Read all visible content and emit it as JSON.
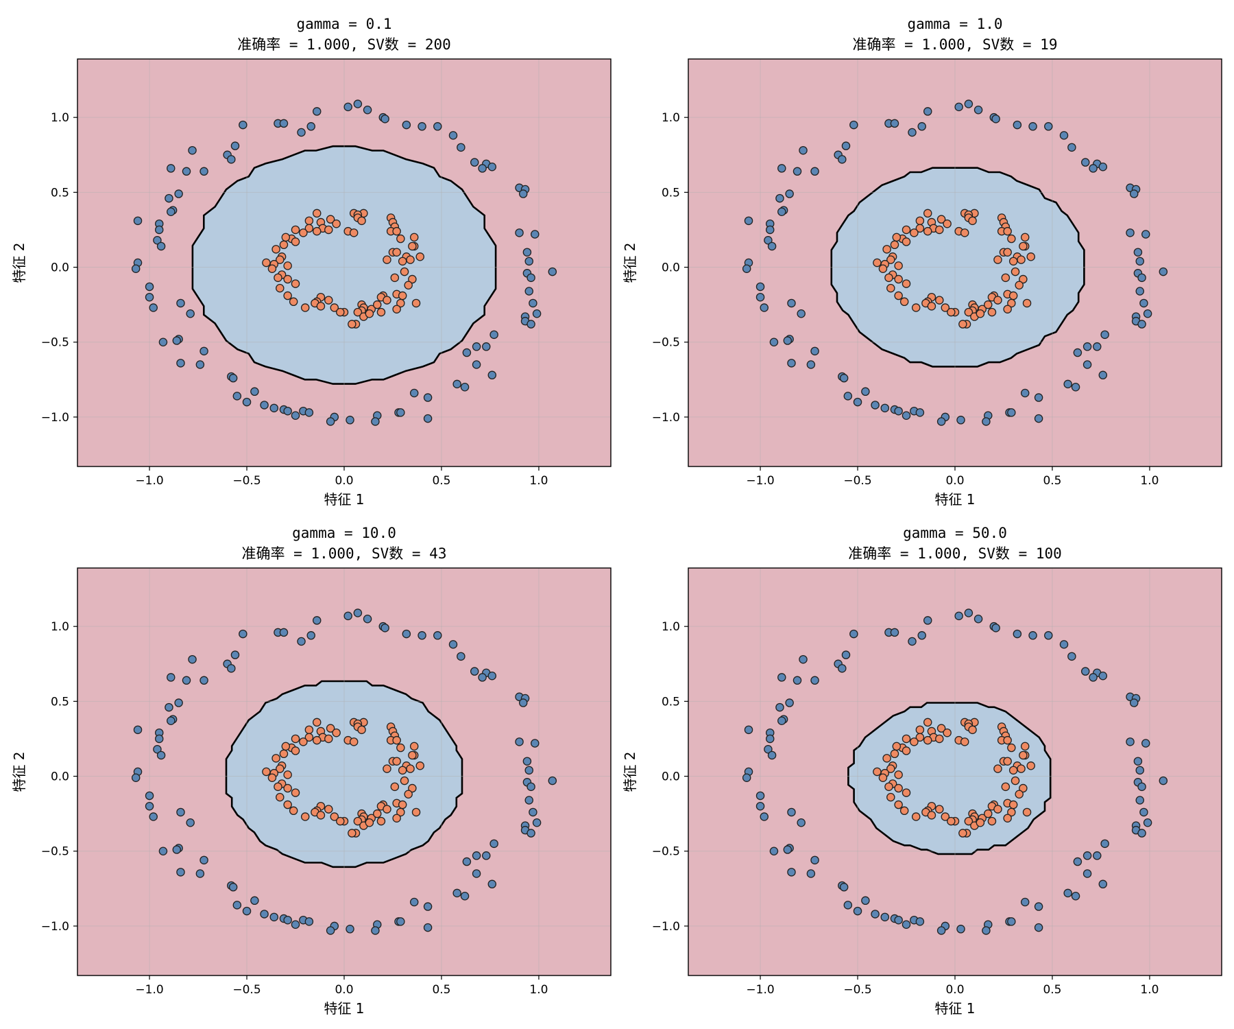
{
  "chart_data": [
    {
      "type": "scatter",
      "title": "gamma = 0.1",
      "subtitle": "准确率 = 1.000, SV数 = 200",
      "xlabel": "特征 1",
      "ylabel": "特征 2",
      "xlim": [
        -1.37,
        1.37
      ],
      "ylim": [
        -1.33,
        1.39
      ],
      "xticks": [
        -1.0,
        -0.5,
        0.0,
        0.5,
        1.0
      ],
      "yticks": [
        -1.0,
        -0.5,
        0.0,
        0.5,
        1.0
      ],
      "xtick_labels": [
        "−1.0",
        "−0.5",
        "0.0",
        "0.5",
        "1.0"
      ],
      "ytick_labels": [
        "−1.0",
        "−0.5",
        "0.0",
        "0.5",
        "1.0"
      ],
      "grid": true,
      "boundary": {
        "rx_pos": 0.78,
        "rx_neg": 0.78,
        "ry_pos": 0.8,
        "ry_neg": 0.77,
        "cx": 0.0,
        "cy": 0.0
      },
      "colors": {
        "outer_class": "#5b86b4",
        "inner_class": "#ef8a62",
        "region_outer": "#e2b6be",
        "region_inner": "#b6cbdf"
      }
    },
    {
      "type": "scatter",
      "title": "gamma = 1.0",
      "subtitle": "准确率 = 1.000, SV数 = 19",
      "xlabel": "特征 1",
      "ylabel": "特征 2",
      "xlim": [
        -1.37,
        1.37
      ],
      "ylim": [
        -1.33,
        1.39
      ],
      "xticks": [
        -1.0,
        -0.5,
        0.0,
        0.5,
        1.0
      ],
      "yticks": [
        -1.0,
        -0.5,
        0.0,
        0.5,
        1.0
      ],
      "xtick_labels": [
        "−1.0",
        "−0.5",
        "0.0",
        "0.5",
        "1.0"
      ],
      "ytick_labels": [
        "−1.0",
        "−0.5",
        "0.0",
        "0.5",
        "1.0"
      ],
      "grid": true,
      "boundary": {
        "rx_pos": 0.66,
        "rx_neg": 0.64,
        "ry_pos": 0.67,
        "ry_neg": 0.66,
        "cx": 0.0,
        "cy": 0.0
      },
      "colors": {
        "outer_class": "#5b86b4",
        "inner_class": "#ef8a62",
        "region_outer": "#e2b6be",
        "region_inner": "#b6cbdf"
      }
    },
    {
      "type": "scatter",
      "title": "gamma = 10.0",
      "subtitle": "准确率 = 1.000, SV数 = 43",
      "xlabel": "特征 1",
      "ylabel": "特征 2",
      "xlim": [
        -1.37,
        1.37
      ],
      "ylim": [
        -1.33,
        1.39
      ],
      "xticks": [
        -1.0,
        -0.5,
        0.0,
        0.5,
        1.0
      ],
      "yticks": [
        -1.0,
        -0.5,
        0.0,
        0.5,
        1.0
      ],
      "xtick_labels": [
        "−1.0",
        "−0.5",
        "0.0",
        "0.5",
        "1.0"
      ],
      "ytick_labels": [
        "−1.0",
        "−0.5",
        "0.0",
        "0.5",
        "1.0"
      ],
      "grid": true,
      "boundary": {
        "rx_pos": 0.61,
        "rx_neg": 0.61,
        "ry_pos": 0.63,
        "ry_neg": 0.6,
        "cx": 0.0,
        "cy": 0.0
      },
      "colors": {
        "outer_class": "#5b86b4",
        "inner_class": "#ef8a62",
        "region_outer": "#e2b6be",
        "region_inner": "#b6cbdf"
      }
    },
    {
      "type": "scatter",
      "title": "gamma = 50.0",
      "subtitle": "准确率 = 1.000, SV数 = 100",
      "xlabel": "特征 1",
      "ylabel": "特征 2",
      "xlim": [
        -1.37,
        1.37
      ],
      "ylim": [
        -1.33,
        1.39
      ],
      "xticks": [
        -1.0,
        -0.5,
        0.0,
        0.5,
        1.0
      ],
      "yticks": [
        -1.0,
        -0.5,
        0.0,
        0.5,
        1.0
      ],
      "xtick_labels": [
        "−1.0",
        "−0.5",
        "0.0",
        "0.5",
        "1.0"
      ],
      "ytick_labels": [
        "−1.0",
        "−0.5",
        "0.0",
        "0.5",
        "1.0"
      ],
      "grid": true,
      "boundary": {
        "rx_pos": 0.5,
        "rx_neg": 0.54,
        "ry_pos": 0.5,
        "ry_neg": 0.52,
        "cx": 0.0,
        "cy": 0.0
      },
      "colors": {
        "outer_class": "#5b86b4",
        "inner_class": "#ef8a62",
        "region_outer": "#e2b6be",
        "region_inner": "#b6cbdf"
      }
    }
  ],
  "points": {
    "outer_ring": [
      [
        0.07,
        1.09
      ],
      [
        0.02,
        1.07
      ],
      [
        0.12,
        1.05
      ],
      [
        -0.14,
        1.04
      ],
      [
        0.2,
        1.0
      ],
      [
        0.21,
        0.99
      ],
      [
        -0.34,
        0.96
      ],
      [
        -0.31,
        0.96
      ],
      [
        -0.52,
        0.95
      ],
      [
        -0.17,
        0.94
      ],
      [
        0.32,
        0.95
      ],
      [
        0.48,
        0.94
      ],
      [
        0.4,
        0.94
      ],
      [
        -0.22,
        0.9
      ],
      [
        0.56,
        0.88
      ],
      [
        -0.56,
        0.81
      ],
      [
        0.6,
        0.8
      ],
      [
        -0.78,
        0.78
      ],
      [
        -0.6,
        0.75
      ],
      [
        -0.58,
        0.72
      ],
      [
        0.73,
        0.69
      ],
      [
        0.67,
        0.7
      ],
      [
        0.76,
        0.67
      ],
      [
        0.71,
        0.66
      ],
      [
        -0.89,
        0.66
      ],
      [
        -0.81,
        0.64
      ],
      [
        -0.72,
        0.64
      ],
      [
        0.9,
        0.53
      ],
      [
        0.93,
        0.52
      ],
      [
        0.92,
        0.49
      ],
      [
        -0.85,
        0.49
      ],
      [
        -0.9,
        0.46
      ],
      [
        -0.88,
        0.38
      ],
      [
        -0.89,
        0.37
      ],
      [
        -1.06,
        0.31
      ],
      [
        -0.95,
        0.29
      ],
      [
        -0.95,
        0.25
      ],
      [
        0.9,
        0.23
      ],
      [
        0.98,
        0.22
      ],
      [
        -0.96,
        0.18
      ],
      [
        -0.94,
        0.14
      ],
      [
        0.94,
        0.1
      ],
      [
        0.95,
        0.04
      ],
      [
        -1.06,
        0.03
      ],
      [
        1.07,
        -0.03
      ],
      [
        0.94,
        -0.04
      ],
      [
        -1.07,
        -0.01
      ],
      [
        0.96,
        -0.07
      ],
      [
        -1.0,
        -0.13
      ],
      [
        0.95,
        -0.16
      ],
      [
        -1.0,
        -0.2
      ],
      [
        0.97,
        -0.24
      ],
      [
        -0.98,
        -0.27
      ],
      [
        -0.84,
        -0.24
      ],
      [
        -0.79,
        -0.31
      ],
      [
        0.93,
        -0.33
      ],
      [
        0.99,
        -0.31
      ],
      [
        0.93,
        -0.36
      ],
      [
        0.96,
        -0.38
      ],
      [
        0.77,
        -0.45
      ],
      [
        -0.85,
        -0.48
      ],
      [
        -0.86,
        -0.49
      ],
      [
        -0.93,
        -0.5
      ],
      [
        -0.72,
        -0.56
      ],
      [
        0.68,
        -0.53
      ],
      [
        0.73,
        -0.53
      ],
      [
        0.63,
        -0.57
      ],
      [
        -0.84,
        -0.64
      ],
      [
        -0.74,
        -0.65
      ],
      [
        0.68,
        -0.65
      ],
      [
        -0.58,
        -0.73
      ],
      [
        -0.57,
        -0.74
      ],
      [
        0.76,
        -0.72
      ],
      [
        0.58,
        -0.78
      ],
      [
        0.62,
        -0.8
      ],
      [
        -0.46,
        -0.83
      ],
      [
        0.36,
        -0.84
      ],
      [
        -0.55,
        -0.86
      ],
      [
        0.43,
        -0.87
      ],
      [
        -0.5,
        -0.9
      ],
      [
        -0.41,
        -0.92
      ],
      [
        -0.36,
        -0.94
      ],
      [
        -0.31,
        -0.95
      ],
      [
        -0.29,
        -0.96
      ],
      [
        -0.21,
        -0.96
      ],
      [
        -0.18,
        -0.97
      ],
      [
        0.28,
        -0.97
      ],
      [
        0.29,
        -0.97
      ],
      [
        -0.25,
        -0.99
      ],
      [
        -0.05,
        -1.0
      ],
      [
        0.17,
        -0.99
      ],
      [
        0.43,
        -1.01
      ],
      [
        0.03,
        -1.02
      ],
      [
        0.16,
        -1.03
      ],
      [
        -0.07,
        -1.03
      ]
    ],
    "inner_ring": [
      [
        0.05,
        0.36
      ],
      [
        0.1,
        0.36
      ],
      [
        -0.14,
        0.36
      ],
      [
        0.07,
        0.35
      ],
      [
        0.07,
        0.33
      ],
      [
        0.24,
        0.33
      ],
      [
        -0.07,
        0.32
      ],
      [
        -0.18,
        0.31
      ],
      [
        0.09,
        0.31
      ],
      [
        0.25,
        0.3
      ],
      [
        -0.12,
        0.3
      ],
      [
        -0.04,
        0.29
      ],
      [
        -0.11,
        0.26
      ],
      [
        -0.18,
        0.26
      ],
      [
        0.26,
        0.27
      ],
      [
        0.24,
        0.24
      ],
      [
        -0.25,
        0.25
      ],
      [
        -0.14,
        0.24
      ],
      [
        -0.08,
        0.25
      ],
      [
        0.02,
        0.24
      ],
      [
        0.05,
        0.23
      ],
      [
        -0.21,
        0.23
      ],
      [
        0.27,
        0.24
      ],
      [
        0.29,
        0.19
      ],
      [
        -0.27,
        0.19
      ],
      [
        -0.3,
        0.2
      ],
      [
        0.36,
        0.2
      ],
      [
        0.36,
        0.14
      ],
      [
        -0.25,
        0.17
      ],
      [
        0.35,
        0.14
      ],
      [
        -0.31,
        0.15
      ],
      [
        0.25,
        0.1
      ],
      [
        -0.35,
        0.12
      ],
      [
        0.32,
        0.07
      ],
      [
        0.27,
        0.1
      ],
      [
        -0.32,
        0.07
      ],
      [
        0.22,
        0.05
      ],
      [
        0.39,
        0.07
      ],
      [
        -0.4,
        0.03
      ],
      [
        0.3,
        0.04
      ],
      [
        -0.33,
        0.05
      ],
      [
        0.34,
        0.05
      ],
      [
        -0.36,
        0.02
      ],
      [
        -0.29,
        0.01
      ],
      [
        -0.37,
        -0.01
      ],
      [
        0.31,
        -0.03
      ],
      [
        -0.32,
        -0.05
      ],
      [
        -0.34,
        -0.07
      ],
      [
        -0.29,
        -0.08
      ],
      [
        0.35,
        -0.08
      ],
      [
        0.26,
        -0.07
      ],
      [
        -0.25,
        -0.11
      ],
      [
        0.33,
        -0.12
      ],
      [
        -0.33,
        -0.14
      ],
      [
        0.27,
        -0.18
      ],
      [
        0.2,
        -0.19
      ],
      [
        0.3,
        -0.19
      ],
      [
        0.19,
        -0.2
      ],
      [
        -0.12,
        -0.2
      ],
      [
        -0.08,
        -0.22
      ],
      [
        -0.29,
        -0.19
      ],
      [
        0.37,
        -0.24
      ],
      [
        -0.14,
        -0.23
      ],
      [
        0.22,
        -0.22
      ],
      [
        0.29,
        -0.24
      ],
      [
        -0.15,
        -0.24
      ],
      [
        -0.12,
        -0.26
      ],
      [
        -0.2,
        -0.27
      ],
      [
        0.09,
        -0.25
      ],
      [
        -0.05,
        -0.27
      ],
      [
        0.1,
        -0.27
      ],
      [
        0.09,
        -0.29
      ],
      [
        0.27,
        -0.28
      ],
      [
        0.19,
        -0.3
      ],
      [
        0.14,
        -0.28
      ],
      [
        0.0,
        -0.3
      ],
      [
        0.07,
        -0.3
      ],
      [
        0.1,
        -0.33
      ],
      [
        0.13,
        -0.31
      ],
      [
        0.06,
        -0.38
      ],
      [
        0.04,
        -0.38
      ],
      [
        -0.02,
        -0.3
      ],
      [
        0.17,
        -0.25
      ],
      [
        -0.26,
        -0.23
      ]
    ]
  }
}
